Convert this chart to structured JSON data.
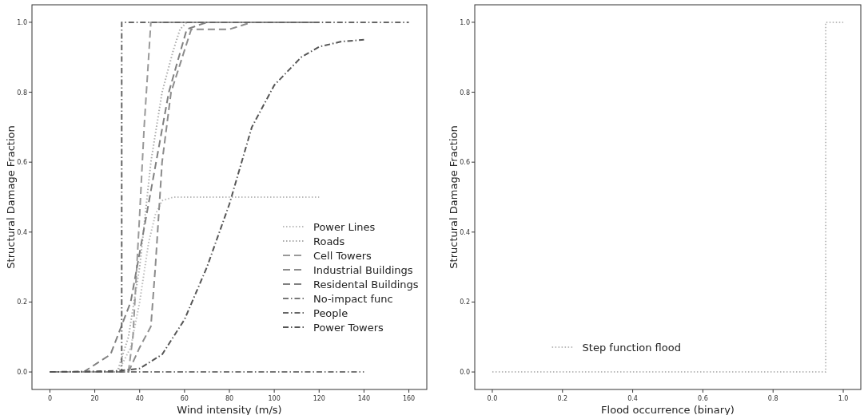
{
  "chart_data": [
    {
      "type": "line",
      "xlabel": "Wind intensity (m/s)",
      "ylabel": "Structural Damage Fraction",
      "xlim": [
        -8,
        168
      ],
      "xticks": [
        0,
        20,
        40,
        60,
        80,
        100,
        120,
        140,
        160
      ],
      "ylim": [
        -0.05,
        1.05
      ],
      "yticks": [
        {
          "value": 0,
          "label": "0.0"
        },
        {
          "value": 0.2,
          "label": "0.2"
        },
        {
          "value": 0.4,
          "label": "0.4"
        },
        {
          "value": 0.6,
          "label": "0.6"
        },
        {
          "value": 0.8,
          "label": "0.8"
        },
        {
          "value": 1,
          "label": "1.0"
        }
      ],
      "legend": "bottom right",
      "grid": false,
      "series": [
        {
          "name": "Power Lines",
          "color": "#bbbbbb",
          "line_style": "dotted",
          "x": [
            0,
            30,
            32,
            36,
            40,
            44,
            47,
            50,
            55,
            120
          ],
          "values": [
            0,
            0,
            0.02,
            0.07,
            0.2,
            0.37,
            0.45,
            0.49,
            0.5,
            0.5
          ]
        },
        {
          "name": "Roads",
          "color": "#aaaaaa",
          "line_style": "dotted",
          "x": [
            0,
            30,
            35,
            40,
            45,
            50,
            55,
            58,
            61,
            120
          ],
          "values": [
            0,
            0,
            0.1,
            0.3,
            0.6,
            0.8,
            0.92,
            0.98,
            1,
            1
          ]
        },
        {
          "name": "Cell Towers",
          "color": "#999999",
          "line_style": "dashed",
          "x": [
            0,
            35,
            37,
            40,
            42,
            45,
            120
          ],
          "values": [
            0,
            0,
            0.1,
            0.45,
            0.7,
            1,
            1
          ]
        },
        {
          "name": "Industrial Buildings",
          "color": "#8c8c8c",
          "line_style": "dashed",
          "x": [
            0,
            35,
            40,
            45,
            47,
            50,
            54,
            63,
            80,
            90,
            120
          ],
          "values": [
            0,
            0,
            0.07,
            0.13,
            0.3,
            0.6,
            0.8,
            0.98,
            0.98,
            1,
            1
          ]
        },
        {
          "name": "Residental Buildings",
          "color": "#808080",
          "line_style": "dashed",
          "x": [
            0,
            15,
            27,
            36,
            53,
            61,
            70,
            120
          ],
          "values": [
            0,
            0,
            0.05,
            0.2,
            0.8,
            0.98,
            1,
            1
          ]
        },
        {
          "name": "No-impact func",
          "color": "#777777",
          "line_style": "dashdot",
          "x": [
            0,
            140
          ],
          "values": [
            0,
            0
          ]
        },
        {
          "name": "People",
          "color": "#666666",
          "line_style": "dashdot",
          "x": [
            0,
            32,
            32,
            160
          ],
          "values": [
            0,
            0,
            1,
            1
          ]
        },
        {
          "name": "Power Towers",
          "color": "#555555",
          "line_style": "dashdot",
          "x": [
            0,
            30,
            40,
            50,
            60,
            70,
            80,
            90,
            100,
            112,
            120,
            130,
            140
          ],
          "values": [
            0,
            0.003,
            0.01,
            0.05,
            0.15,
            0.3,
            0.48,
            0.7,
            0.82,
            0.9,
            0.93,
            0.945,
            0.95
          ]
        }
      ]
    },
    {
      "type": "step",
      "xlabel": "Flood occurrence (binary)",
      "ylabel": "Structural Damage Fraction",
      "xlim": [
        -0.05,
        1.05
      ],
      "xticks": [
        {
          "value": 0,
          "label": "0.0"
        },
        {
          "value": 0.2,
          "label": "0.2"
        },
        {
          "value": 0.4,
          "label": "0.4"
        },
        {
          "value": 0.6,
          "label": "0.6"
        },
        {
          "value": 0.8,
          "label": "0.8"
        },
        {
          "value": 1,
          "label": "1.0"
        }
      ],
      "ylim": [
        -0.05,
        1.05
      ],
      "yticks": [
        {
          "value": 0,
          "label": "0.0"
        },
        {
          "value": 0.2,
          "label": "0.2"
        },
        {
          "value": 0.4,
          "label": "0.4"
        },
        {
          "value": 0.6,
          "label": "0.6"
        },
        {
          "value": 0.8,
          "label": "0.8"
        },
        {
          "value": 1,
          "label": "1.0"
        }
      ],
      "legend": "bottom left",
      "grid": false,
      "series": [
        {
          "name": "Step function flood",
          "color": "#bbbbbb",
          "line_style": "dotted",
          "x": [
            0,
            0.95,
            1
          ],
          "values": [
            0,
            1,
            1
          ]
        }
      ]
    }
  ]
}
